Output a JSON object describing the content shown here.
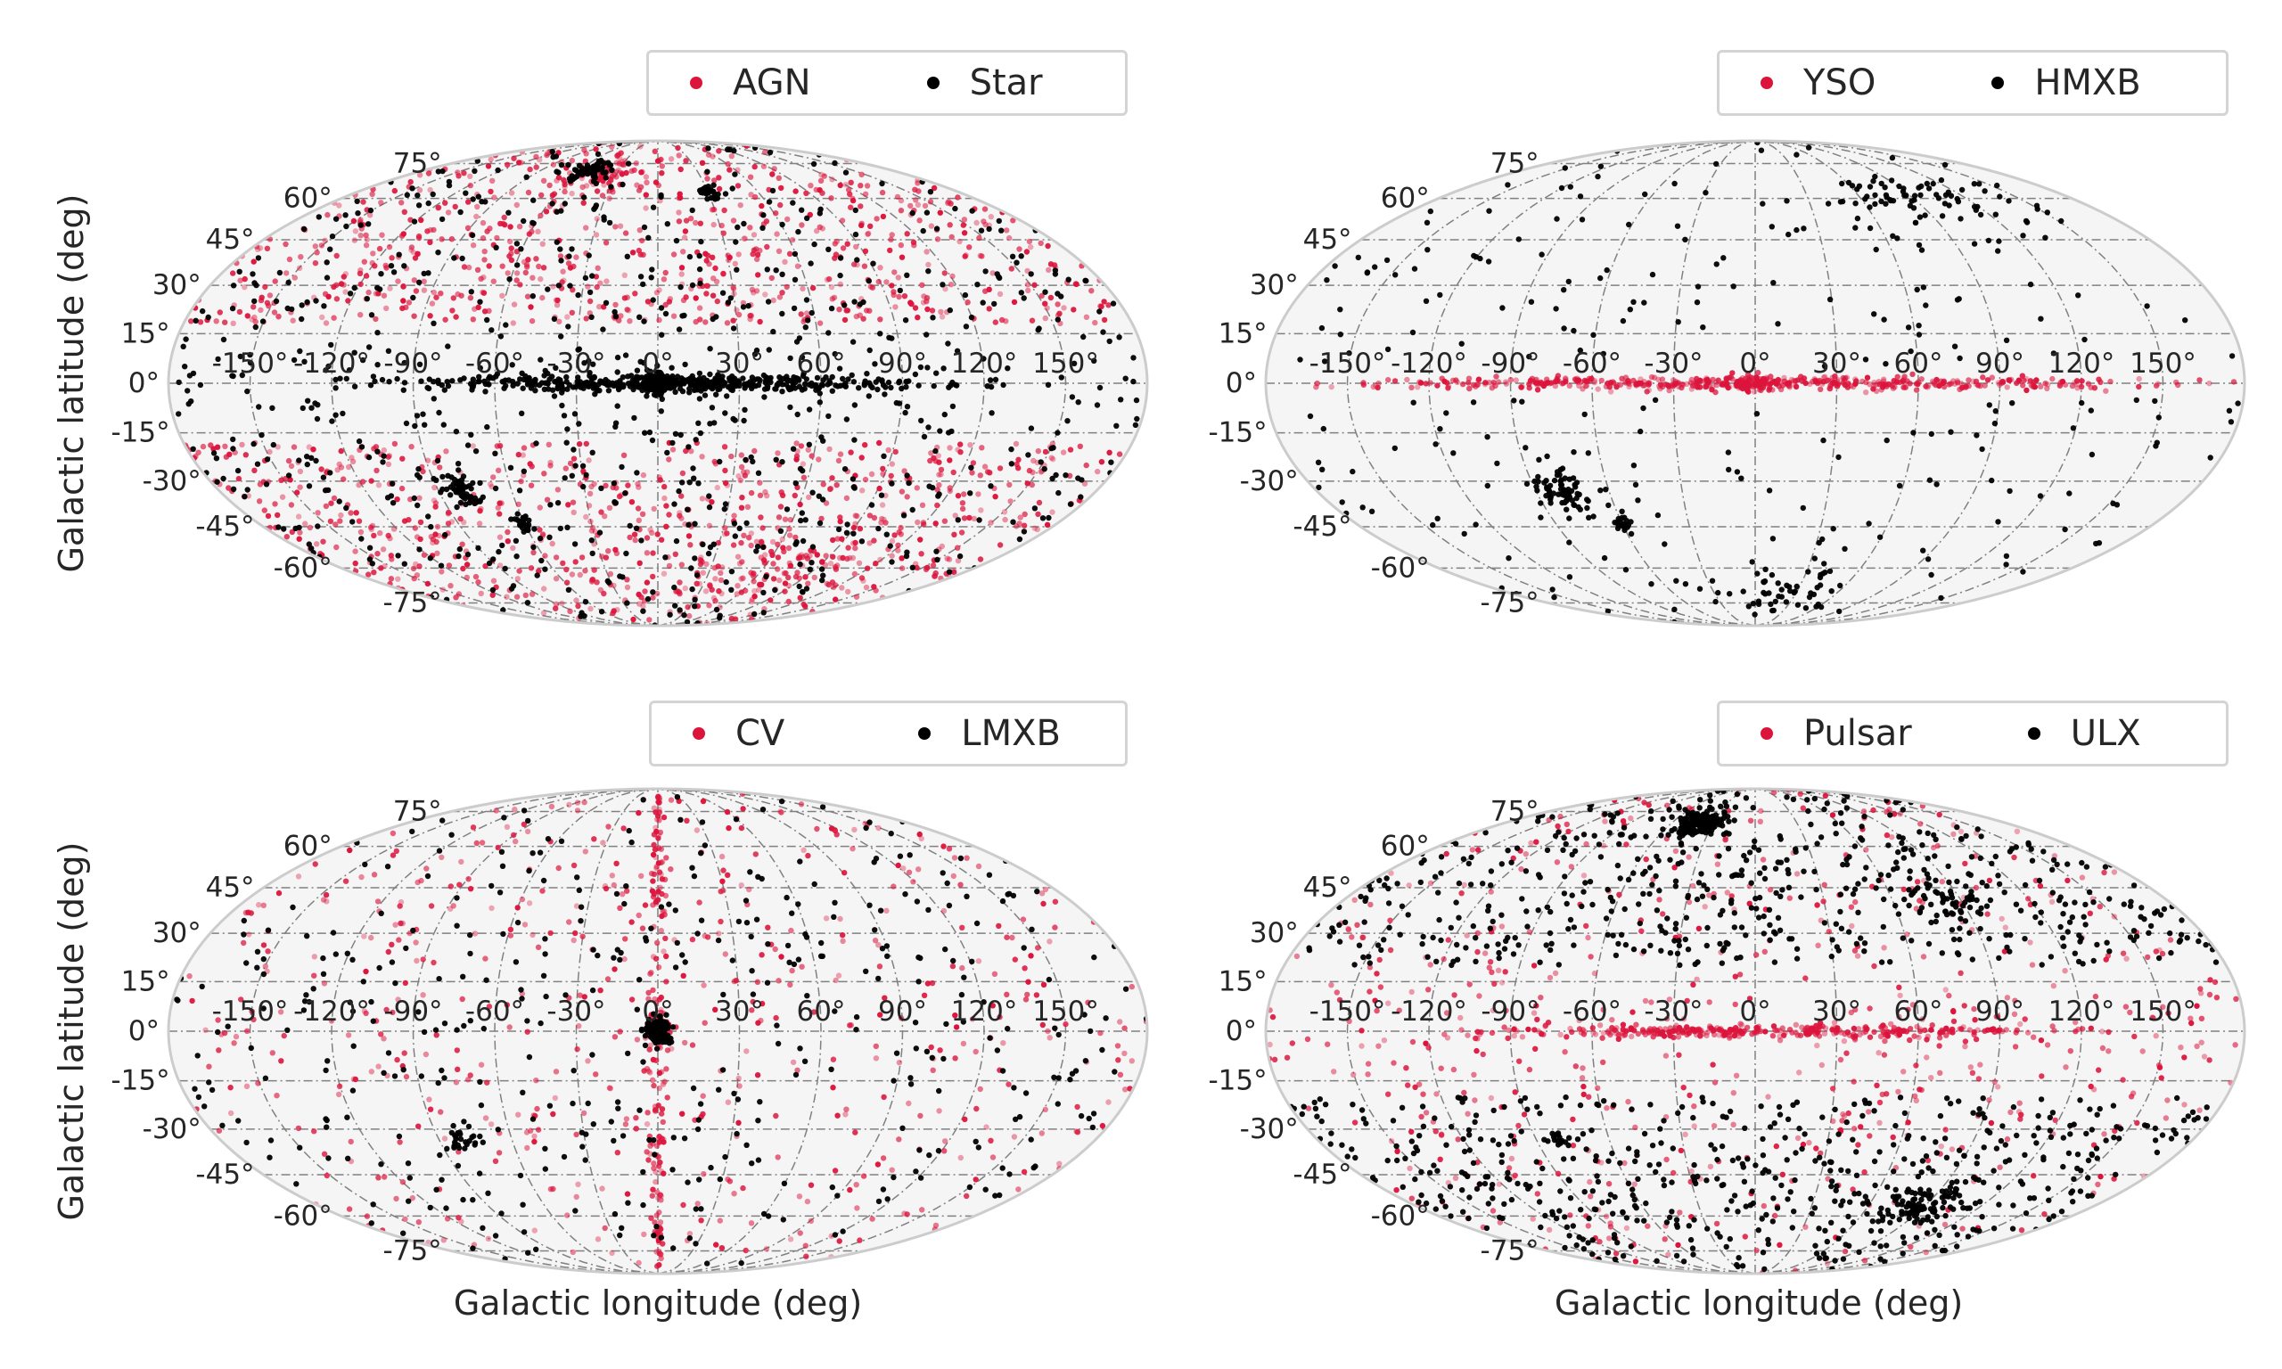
{
  "chart_data": [
    {
      "type": "scatter",
      "projection": "mollweide",
      "legend": [
        "AGN",
        "Star"
      ],
      "ylabel": "Galactic latitude (deg)",
      "xlabel": "",
      "series": [
        {
          "name": "AGN",
          "color": "#dc143c",
          "components": [
            {
              "kind": "uniform",
              "n": 1500,
              "min_abs_lat": 18
            },
            {
              "kind": "cluster",
              "lon": -40,
              "lat": 70,
              "sl": 15,
              "sb": 4,
              "n": 80
            },
            {
              "kind": "cluster",
              "lon": 70,
              "lat": -60,
              "sl": 25,
              "sb": 6,
              "n": 80
            }
          ]
        },
        {
          "name": "Star",
          "color": "#000000",
          "components": [
            {
              "kind": "uniform",
              "n": 800,
              "min_abs_lat": 0
            },
            {
              "kind": "plane",
              "lon_sd": 45,
              "lat_sd": 1.2,
              "n": 450
            },
            {
              "kind": "cluster",
              "lon": 0,
              "lat": 0,
              "sl": 3,
              "sb": 2,
              "n": 120
            },
            {
              "kind": "cluster",
              "lon": -80,
              "lat": -33,
              "sl": 4,
              "sb": 2.5,
              "n": 60
            },
            {
              "kind": "cluster",
              "lon": -60,
              "lat": -44,
              "sl": 2,
              "sb": 1.5,
              "n": 25
            },
            {
              "kind": "cluster",
              "lon": -50,
              "lat": 72,
              "sl": 8,
              "sb": 2,
              "n": 60
            },
            {
              "kind": "cluster",
              "lon": 30,
              "lat": 62,
              "sl": 3,
              "sb": 1.5,
              "n": 25
            }
          ]
        }
      ]
    },
    {
      "type": "scatter",
      "projection": "mollweide",
      "legend": [
        "YSO",
        "HMXB"
      ],
      "ylabel": "",
      "xlabel": "",
      "series": [
        {
          "name": "YSO",
          "color": "#dc143c",
          "components": [
            {
              "kind": "plane",
              "lon_sd": 70,
              "lat_sd": 1.0,
              "n": 450
            },
            {
              "kind": "cluster",
              "lon": 0,
              "lat": 0,
              "sl": 8,
              "sb": 1.2,
              "n": 80
            }
          ]
        },
        {
          "name": "HMXB",
          "color": "#000000",
          "components": [
            {
              "kind": "uniform",
              "n": 260,
              "min_abs_lat": 5
            },
            {
              "kind": "cluster",
              "lon": -80,
              "lat": -33,
              "sl": 5,
              "sb": 4,
              "n": 70
            },
            {
              "kind": "cluster",
              "lon": -60,
              "lat": -44,
              "sl": 2,
              "sb": 1.5,
              "n": 20
            },
            {
              "kind": "cluster",
              "lon": 100,
              "lat": 62,
              "sl": 25,
              "sb": 5,
              "n": 70
            },
            {
              "kind": "cluster",
              "lon": 20,
              "lat": -70,
              "sl": 20,
              "sb": 5,
              "n": 50
            }
          ]
        }
      ]
    },
    {
      "type": "scatter",
      "projection": "mollweide",
      "legend": [
        "CV",
        "LMXB"
      ],
      "ylabel": "Galactic latitude (deg)",
      "xlabel": "Galactic longitude (deg)",
      "series": [
        {
          "name": "CV",
          "color": "#dc143c",
          "components": [
            {
              "kind": "uniform",
              "n": 550,
              "min_abs_lat": 0
            },
            {
              "kind": "column",
              "lon": 0,
              "lon_sd": 2,
              "n": 160
            },
            {
              "kind": "cluster",
              "lon": 0,
              "lat": 0,
              "sl": 3,
              "sb": 2,
              "n": 60
            }
          ]
        },
        {
          "name": "LMXB",
          "color": "#000000",
          "components": [
            {
              "kind": "uniform",
              "n": 420,
              "min_abs_lat": 0
            },
            {
              "kind": "cluster",
              "lon": 0,
              "lat": 0,
              "sl": 2.5,
              "sb": 2,
              "n": 90
            },
            {
              "kind": "cluster",
              "lon": -80,
              "lat": -33,
              "sl": 3,
              "sb": 2,
              "n": 25
            }
          ]
        }
      ]
    },
    {
      "type": "scatter",
      "projection": "mollweide",
      "legend": [
        "Pulsar",
        "ULX"
      ],
      "ylabel": "",
      "xlabel": "Galactic longitude (deg)",
      "series": [
        {
          "name": "Pulsar",
          "color": "#dc143c",
          "components": [
            {
              "kind": "uniform",
              "n": 650,
              "min_abs_lat": 0
            },
            {
              "kind": "plane",
              "lon_sd": 50,
              "lat_sd": 1.0,
              "n": 320
            }
          ]
        },
        {
          "name": "ULX",
          "color": "#000000",
          "components": [
            {
              "kind": "uniform",
              "n": 1100,
              "min_abs_lat": 20
            },
            {
              "kind": "cluster",
              "lon": -40,
              "lat": 70,
              "sl": 10,
              "sb": 3,
              "n": 150
            },
            {
              "kind": "cluster",
              "lon": 90,
              "lat": -55,
              "sl": 12,
              "sb": 4,
              "n": 90
            },
            {
              "kind": "cluster",
              "lon": 80,
              "lat": 40,
              "sl": 8,
              "sb": 4,
              "n": 50
            },
            {
              "kind": "cluster",
              "lon": -80,
              "lat": -33,
              "sl": 2,
              "sb": 1.5,
              "n": 15
            }
          ]
        }
      ]
    }
  ],
  "axes": {
    "lon_ticks": [
      -150,
      -120,
      -90,
      -60,
      -30,
      0,
      30,
      60,
      90,
      120,
      150
    ],
    "lat_ticks": [
      -75,
      -60,
      -45,
      -30,
      -15,
      0,
      15,
      30,
      45,
      60,
      75
    ],
    "xlim": [
      -180,
      180
    ],
    "ylim": [
      -90,
      90
    ],
    "grid": true
  }
}
